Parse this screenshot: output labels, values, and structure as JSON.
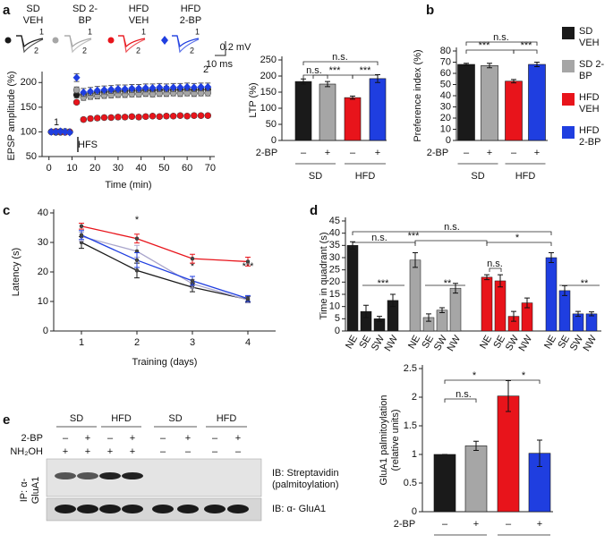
{
  "chart_data": [
    {
      "panel": "a",
      "type": "line",
      "connect": false,
      "ylabel": "EPSP amplitude (%)",
      "xlabel": "Time (min)",
      "x": [
        1,
        3,
        5,
        7,
        9,
        12,
        15,
        18,
        21,
        24,
        27,
        30,
        33,
        36,
        39,
        42,
        45,
        48,
        51,
        54,
        57,
        60,
        63,
        66,
        69
      ],
      "xlim": [
        -3,
        72
      ],
      "xticks": [
        0,
        10,
        20,
        30,
        40,
        50,
        60,
        70
      ],
      "ylim": [
        50,
        215
      ],
      "yticks": [
        50,
        100,
        150,
        200
      ],
      "annotations": [
        "1",
        "2",
        "HFS",
        "10 ms",
        "0.2 mV"
      ],
      "series": [
        {
          "name": "SD VEH",
          "color": "#1a1a1a",
          "marker": "circle",
          "values": [
            100,
            99,
            101,
            100,
            100,
            175,
            176,
            178,
            180,
            181,
            182,
            183,
            183,
            184,
            184,
            185,
            184,
            185,
            186,
            185,
            186,
            186,
            185,
            186,
            186
          ],
          "errors": [
            3,
            3,
            3,
            3,
            3,
            6,
            6,
            6,
            6,
            6,
            6,
            6,
            6,
            6,
            6,
            6,
            6,
            6,
            6,
            6,
            6,
            6,
            6,
            6,
            6
          ]
        },
        {
          "name": "SD 2-BP",
          "color": "#a6a6a6",
          "marker": "circle",
          "values": [
            100,
            100,
            99,
            101,
            100,
            185,
            170,
            172,
            173,
            174,
            175,
            176,
            176,
            177,
            177,
            178,
            177,
            178,
            178,
            179,
            178,
            179,
            178,
            179,
            179
          ],
          "errors": [
            3,
            3,
            3,
            3,
            3,
            6,
            6,
            6,
            6,
            6,
            6,
            6,
            6,
            6,
            6,
            6,
            6,
            6,
            6,
            6,
            6,
            6,
            6,
            6,
            6
          ]
        },
        {
          "name": "HFD VEH",
          "color": "#e8141b",
          "marker": "circle",
          "values": [
            100,
            101,
            100,
            99,
            100,
            160,
            125,
            127,
            128,
            129,
            129,
            130,
            130,
            131,
            130,
            131,
            132,
            131,
            132,
            132,
            133,
            132,
            133,
            133,
            133
          ],
          "errors": [
            2,
            2,
            2,
            2,
            2,
            4,
            4,
            4,
            4,
            4,
            4,
            4,
            4,
            4,
            4,
            4,
            4,
            4,
            4,
            4,
            4,
            4,
            4,
            4,
            4
          ]
        },
        {
          "name": "HFD 2-BP",
          "color": "#1f3ee0",
          "marker": "diamond",
          "values": [
            100,
            100,
            101,
            100,
            99,
            210,
            180,
            182,
            184,
            185,
            186,
            187,
            187,
            188,
            188,
            189,
            189,
            190,
            189,
            190,
            190,
            191,
            190,
            191,
            191
          ],
          "errors": [
            3,
            3,
            3,
            3,
            3,
            8,
            8,
            8,
            8,
            8,
            8,
            8,
            8,
            8,
            8,
            8,
            8,
            8,
            8,
            8,
            8,
            8,
            8,
            8,
            8
          ]
        }
      ]
    },
    {
      "type": "bar",
      "ylabel": "LTP (%)",
      "categories": [
        "–",
        "+",
        "–",
        "+"
      ],
      "row_label": "2-BP",
      "groups": [
        "SD",
        "HFD"
      ],
      "values": [
        183,
        175,
        133,
        192
      ],
      "errors": [
        8,
        8,
        5,
        12
      ],
      "colors": [
        "#1a1a1a",
        "#a6a6a6",
        "#e8141b",
        "#1f3ee0"
      ],
      "ylim": [
        0,
        250
      ],
      "yticks": [
        0,
        50,
        100,
        150,
        200,
        250
      ],
      "annotations": [
        "n.s.",
        "n.s.",
        "***",
        "***"
      ]
    },
    {
      "panel": "b",
      "type": "bar",
      "ylabel": "Preference index (%)",
      "categories": [
        "–",
        "+",
        "–",
        "+"
      ],
      "row_label": "2-BP",
      "groups": [
        "SD",
        "HFD"
      ],
      "values": [
        68,
        67,
        53,
        68
      ],
      "errors": [
        1,
        2,
        1.5,
        2
      ],
      "colors": [
        "#1a1a1a",
        "#a6a6a6",
        "#e8141b",
        "#1f3ee0"
      ],
      "ylim": [
        0,
        80
      ],
      "yticks": [
        0,
        10,
        20,
        30,
        40,
        50,
        60,
        70,
        80
      ],
      "annotations": [
        "n.s.",
        "***",
        "***"
      ],
      "legend": [
        {
          "name": "SD VEH",
          "color": "#1a1a1a"
        },
        {
          "name": "SD 2-BP",
          "color": "#a6a6a6"
        },
        {
          "name": "HFD VEH",
          "color": "#e8141b"
        },
        {
          "name": "HFD 2-BP",
          "color": "#1f3ee0"
        }
      ]
    },
    {
      "panel": "c",
      "type": "line",
      "connect": true,
      "ylabel": "Latency (s)",
      "xlabel": "Training (days)",
      "x": [
        1,
        2,
        3,
        4
      ],
      "xlim": [
        0.5,
        4.5
      ],
      "xticks": [
        1,
        2,
        3,
        4
      ],
      "ylim": [
        0,
        40
      ],
      "yticks": [
        0,
        10,
        20,
        30,
        40
      ],
      "annotations": [
        "*",
        "*",
        "***"
      ],
      "series": [
        {
          "color": "#1a1a1a",
          "values": [
            30,
            20.5,
            14.8,
            10.7
          ],
          "errors": [
            2,
            2.5,
            1.5,
            1
          ]
        },
        {
          "color": "#aaa6cc",
          "values": [
            32,
            27,
            16,
            10.5
          ],
          "errors": [
            1.5,
            2,
            1.5,
            1
          ]
        },
        {
          "color": "#e8141b",
          "values": [
            35.5,
            31.3,
            24.5,
            23.5
          ],
          "errors": [
            1,
            1.5,
            1.5,
            1.5
          ]
        },
        {
          "color": "#1f3ee0",
          "values": [
            32.5,
            24,
            17,
            11
          ],
          "errors": [
            1.5,
            2.5,
            1.5,
            1
          ]
        }
      ]
    },
    {
      "panel": "d",
      "type": "groupbar",
      "ylabel": "Time in quadrant (s)",
      "categories": [
        "NE",
        "SE",
        "SW",
        "NW"
      ],
      "ylim": [
        0,
        45
      ],
      "yticks": [
        0,
        5,
        10,
        15,
        20,
        25,
        30,
        35,
        40,
        45
      ],
      "annotations": [
        "n.s.",
        "n.s.",
        "***",
        "***",
        "**",
        "n.s.",
        "*",
        "**"
      ],
      "series": [
        {
          "color": "#1a1a1a",
          "values": [
            35,
            8,
            5,
            12.5
          ],
          "errors": [
            1.5,
            2.5,
            1,
            2.5
          ]
        },
        {
          "color": "#a6a6a6",
          "values": [
            29,
            5.5,
            8.5,
            17.5
          ],
          "errors": [
            3,
            1.5,
            1,
            2
          ]
        },
        {
          "color": "#e8141b",
          "values": [
            22,
            20.5,
            6,
            11.5
          ],
          "errors": [
            1,
            2.5,
            2,
            2
          ]
        },
        {
          "color": "#1f3ee0",
          "values": [
            30,
            16.5,
            7,
            7
          ],
          "errors": [
            2,
            2,
            1,
            0.8
          ]
        }
      ]
    },
    {
      "panel": "e",
      "type": "bar",
      "ylabel": "GluA1 palmitoylation (relative units)",
      "categories": [
        "–",
        "+",
        "–",
        "+"
      ],
      "row_label": "2-BP",
      "groups": [
        "SD",
        "HFD"
      ],
      "values": [
        1,
        1.15,
        2.02,
        1.02
      ],
      "errors": [
        0,
        0.08,
        0.27,
        0.23
      ],
      "colors": [
        "#1a1a1a",
        "#a6a6a6",
        "#e8141b",
        "#1f3ee0"
      ],
      "ylim": [
        0,
        2.5
      ],
      "yticks": [
        0,
        0.5,
        1,
        1.5,
        2,
        2.5
      ],
      "annotations": [
        "*",
        "*",
        "n.s."
      ]
    }
  ],
  "blot": {
    "groups": [
      "SD",
      "HFD",
      "SD",
      "HFD"
    ],
    "rows": [
      {
        "label": "2-BP",
        "signs": [
          "–",
          "+",
          "–",
          "+",
          "–",
          "+",
          "–",
          "+"
        ]
      },
      {
        "label": "NH₂OH",
        "signs": [
          "+",
          "+",
          "+",
          "+",
          "–",
          "–",
          "–",
          "–"
        ]
      }
    ],
    "probes": [
      "IB: Streptavidin (palmitoylation)",
      "IB: α- GluA1"
    ],
    "ip": "IP: α- GluA1"
  }
}
